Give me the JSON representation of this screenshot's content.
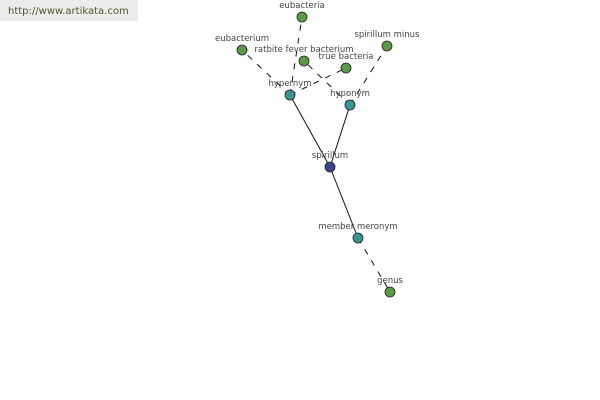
{
  "site_link": "http://www.artikata.com",
  "colors": {
    "leaf": "#5a9a48",
    "relation": "#3a9494",
    "center": "#3c4590"
  },
  "nodes": [
    {
      "id": "spirillum",
      "label": "spirillum",
      "kind": "center"
    },
    {
      "id": "hypernym",
      "label": "hypernym",
      "kind": "relation"
    },
    {
      "id": "hyponym",
      "label": "hyponym",
      "kind": "relation"
    },
    {
      "id": "member_meronym",
      "label": "member meronym",
      "kind": "relation"
    },
    {
      "id": "eubacteria",
      "label": "eubacteria",
      "kind": "leaf"
    },
    {
      "id": "eubacterium",
      "label": "eubacterium",
      "kind": "leaf"
    },
    {
      "id": "ratbite",
      "label": "ratbite fever bacterium",
      "kind": "leaf"
    },
    {
      "id": "true_bacteria",
      "label": "true bacteria",
      "kind": "leaf"
    },
    {
      "id": "spirillum_minus",
      "label": "spirillum minus",
      "kind": "leaf"
    },
    {
      "id": "genus",
      "label": "genus",
      "kind": "leaf"
    }
  ],
  "edges": [
    {
      "from": "spirillum",
      "to": "hypernym",
      "style": "solid"
    },
    {
      "from": "spirillum",
      "to": "hyponym",
      "style": "solid"
    },
    {
      "from": "spirillum",
      "to": "member_meronym",
      "style": "solid"
    },
    {
      "from": "hypernym",
      "to": "eubacteria",
      "style": "dashed"
    },
    {
      "from": "hypernym",
      "to": "eubacterium",
      "style": "dashed"
    },
    {
      "from": "hypernym",
      "to": "true_bacteria",
      "style": "dashed"
    },
    {
      "from": "hyponym",
      "to": "ratbite",
      "style": "dashed"
    },
    {
      "from": "hyponym",
      "to": "spirillum_minus",
      "style": "dashed"
    },
    {
      "from": "member_meronym",
      "to": "genus",
      "style": "dashed"
    }
  ]
}
